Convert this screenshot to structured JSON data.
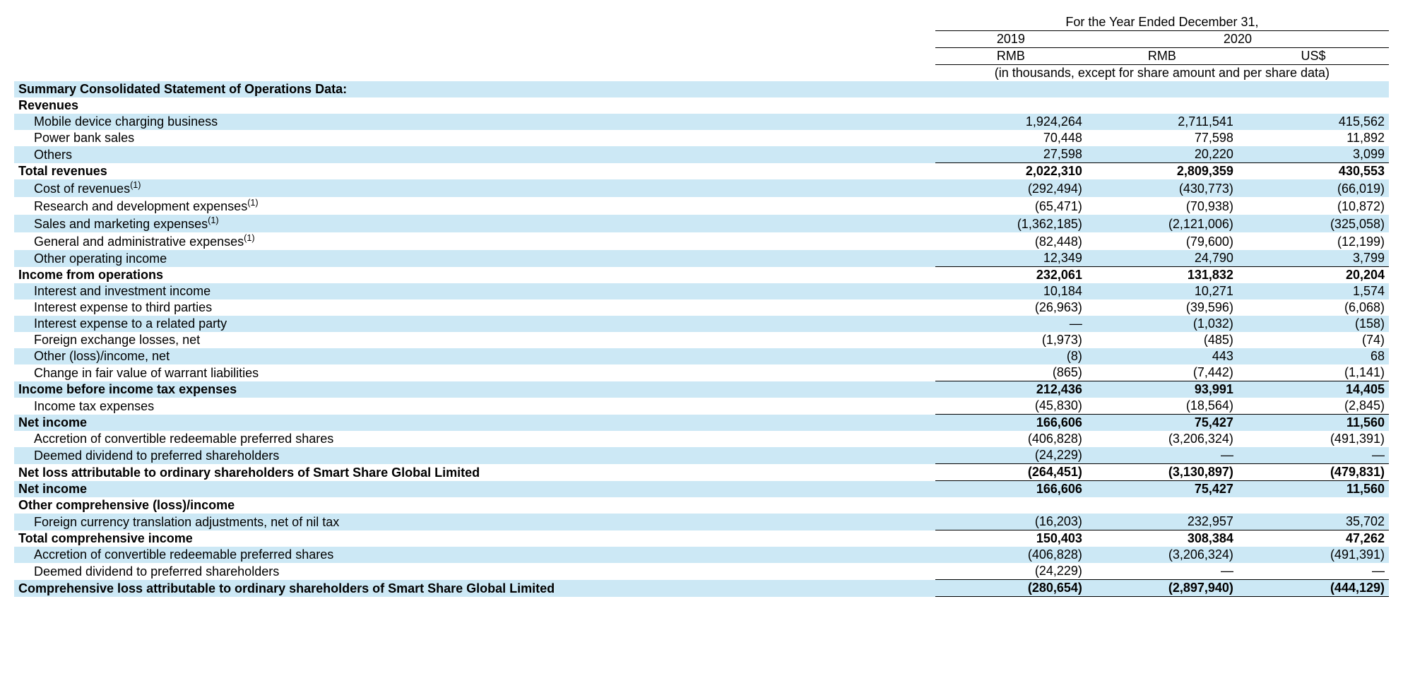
{
  "header": {
    "title_span": "For the Year Ended December 31,",
    "year_2019": "2019",
    "year_2020": "2020",
    "cur_rmb_1": "RMB",
    "cur_rmb_2": "RMB",
    "cur_usd": "US$",
    "note": "(in thousands, except for share amount and per share data)"
  },
  "labels": {
    "summary": "Summary Consolidated Statement of Operations Data:",
    "revenues": "Revenues",
    "mobile": "Mobile device charging business",
    "power_bank": "Power bank sales",
    "others": "Others",
    "total_rev": "Total revenues",
    "cost_rev_a": "Cost of revenues",
    "cost_rev_s": "(1)",
    "rd_a": "Research and development expenses",
    "rd_s": "(1)",
    "sm_a": "Sales and marketing expenses",
    "sm_s": "(1)",
    "ga_a": "General and administrative expenses",
    "ga_s": "(1)",
    "other_op": "Other operating income",
    "inc_ops": "Income from operations",
    "int_inv": "Interest and investment income",
    "int_exp_3p": "Interest expense to third parties",
    "int_exp_rel": "Interest expense to a related party",
    "fx": "Foreign exchange losses, net",
    "other_li": "Other (loss)/income, net",
    "warrant": "Change in fair value of warrant liabilities",
    "inc_before_tax": "Income before income tax expenses",
    "tax": "Income tax expenses",
    "net_income": "Net income",
    "accretion": "Accretion of convertible redeemable preferred shares",
    "deemed": "Deemed dividend to preferred shareholders",
    "net_loss_attr": "Net loss attributable to ordinary shareholders of Smart Share Global Limited",
    "net_income2": "Net income",
    "oci_hdr": "Other comprehensive (loss)/income",
    "fx_adj": "Foreign currency translation adjustments, net of nil tax",
    "total_comp": "Total comprehensive income",
    "accretion2": "Accretion of convertible redeemable preferred shares",
    "deemed2": "Deemed dividend to preferred shareholders",
    "comp_loss_attr": "Comprehensive loss attributable to ordinary shareholders of Smart Share Global Limited"
  },
  "vals": {
    "mobile": {
      "a": "1,924,264",
      "b": "2,711,541",
      "c": "415,562"
    },
    "power_bank": {
      "a": "70,448",
      "b": "77,598",
      "c": "11,892"
    },
    "others": {
      "a": "27,598",
      "b": "20,220",
      "c": "3,099"
    },
    "total_rev": {
      "a": "2,022,310",
      "b": "2,809,359",
      "c": "430,553"
    },
    "cost_rev": {
      "a": "(292,494)",
      "b": "(430,773)",
      "c": "(66,019)"
    },
    "rd": {
      "a": "(65,471)",
      "b": "(70,938)",
      "c": "(10,872)"
    },
    "sm": {
      "a": "(1,362,185)",
      "b": "(2,121,006)",
      "c": "(325,058)"
    },
    "ga": {
      "a": "(82,448)",
      "b": "(79,600)",
      "c": "(12,199)"
    },
    "other_op": {
      "a": "12,349",
      "b": "24,790",
      "c": "3,799"
    },
    "inc_ops": {
      "a": "232,061",
      "b": "131,832",
      "c": "20,204"
    },
    "int_inv": {
      "a": "10,184",
      "b": "10,271",
      "c": "1,574"
    },
    "int_exp_3p": {
      "a": "(26,963)",
      "b": "(39,596)",
      "c": "(6,068)"
    },
    "int_exp_rel": {
      "a": "—",
      "b": "(1,032)",
      "c": "(158)"
    },
    "fx": {
      "a": "(1,973)",
      "b": "(485)",
      "c": "(74)"
    },
    "other_li": {
      "a": "(8)",
      "b": "443",
      "c": "68"
    },
    "warrant": {
      "a": "(865)",
      "b": "(7,442)",
      "c": "(1,141)"
    },
    "inc_before_tax": {
      "a": "212,436",
      "b": "93,991",
      "c": "14,405"
    },
    "tax": {
      "a": "(45,830)",
      "b": "(18,564)",
      "c": "(2,845)"
    },
    "net_income": {
      "a": "166,606",
      "b": "75,427",
      "c": "11,560"
    },
    "accretion": {
      "a": "(406,828)",
      "b": "(3,206,324)",
      "c": "(491,391)"
    },
    "deemed": {
      "a": "(24,229)",
      "b": "—",
      "c": "—"
    },
    "net_loss_attr": {
      "a": "(264,451)",
      "b": "(3,130,897)",
      "c": "(479,831)"
    },
    "net_income2": {
      "a": "166,606",
      "b": "75,427",
      "c": "11,560"
    },
    "fx_adj": {
      "a": "(16,203)",
      "b": "232,957",
      "c": "35,702"
    },
    "total_comp": {
      "a": "150,403",
      "b": "308,384",
      "c": "47,262"
    },
    "accretion2": {
      "a": "(406,828)",
      "b": "(3,206,324)",
      "c": "(491,391)"
    },
    "deemed2": {
      "a": "(24,229)",
      "b": "—",
      "c": "—"
    },
    "comp_loss_attr": {
      "a": "(280,654)",
      "b": "(2,897,940)",
      "c": "(444,129)"
    }
  },
  "style": {
    "shade_color": "#cce8f5",
    "border_color": "#000000",
    "font_family": "Arial",
    "base_fontsize": 18
  }
}
